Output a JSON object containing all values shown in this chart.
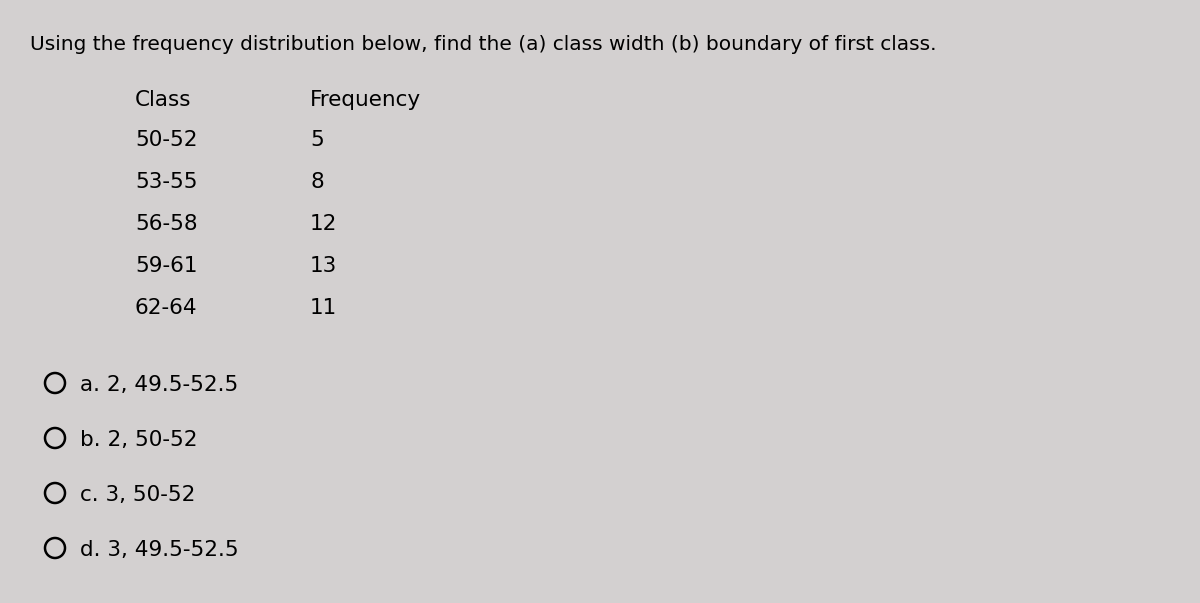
{
  "title": "Using the frequency distribution below, find the (a) class width (b) boundary of first class.",
  "title_fontsize": 14.5,
  "table_header": [
    "Class",
    "Frequency"
  ],
  "table_classes": [
    "50-52",
    "53-55",
    "56-58",
    "59-61",
    "62-64"
  ],
  "table_frequencies": [
    "5",
    "8",
    "12",
    "13",
    "11"
  ],
  "options": [
    "a. 2, 49.5-52.5",
    "b. 2, 50-52",
    "c. 3, 50-52",
    "d. 3, 49.5-52.5"
  ],
  "text_fontsize": 15.5,
  "header_fontsize": 15.5,
  "background_color": "#d3d0d0"
}
